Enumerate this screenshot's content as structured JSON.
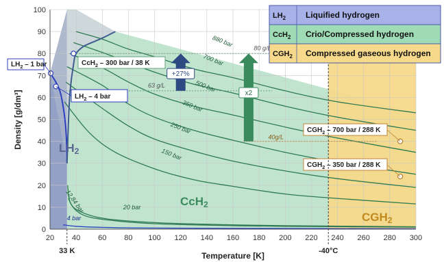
{
  "chart_data": {
    "type": "line",
    "xlabel": "Temperature [K]",
    "ylabel": "Density [g/dm³]",
    "xlim": [
      20,
      300
    ],
    "ylim": [
      0,
      100
    ],
    "x_ticks": [
      "20",
      "40",
      "60",
      "80",
      "100",
      "120",
      "140",
      "160",
      "180",
      "200",
      "220",
      "240",
      "260",
      "280",
      "300"
    ],
    "y_ticks": [
      "0",
      "10",
      "20",
      "30",
      "40",
      "50",
      "60",
      "70",
      "80",
      "90",
      "100"
    ],
    "x_marks": [
      "33 K",
      "-40°C"
    ],
    "grid": true,
    "regions": [
      {
        "name": "LH2",
        "label": "LH",
        "sub": "2",
        "color": "#8e9cc4"
      },
      {
        "name": "CcH2",
        "label": "CcH",
        "sub": "2",
        "color": "#b5dfc5"
      },
      {
        "name": "CGH2",
        "label": "CGH",
        "sub": "2",
        "color": "#f6d98a"
      }
    ],
    "legend": {
      "placement": "top-right",
      "items": [
        {
          "symbol": "LH",
          "sub": "2",
          "label": "Liquified hydrogen",
          "color": "#a8b2e8"
        },
        {
          "symbol": "CcH",
          "sub": "2",
          "label": "Crio/Compressed hydrogen",
          "color": "#9fdcb6"
        },
        {
          "symbol": "CGH",
          "sub": "2",
          "label": "Compressed gaseous hydrogen",
          "color": "#f6d98a"
        }
      ]
    },
    "series": [
      {
        "name": "880 bar",
        "x": [
          40,
          60,
          80,
          100,
          130,
          160,
          200,
          240,
          300
        ],
        "y": [
          90,
          86.5,
          82,
          78.5,
          73,
          69,
          63,
          58,
          53
        ]
      },
      {
        "name": "700 bar",
        "x": [
          38,
          60,
          80,
          100,
          130,
          160,
          200,
          240,
          300
        ],
        "y": [
          85,
          80.5,
          76,
          71.5,
          66,
          62,
          56,
          51,
          45
        ]
      },
      {
        "name": "500 bar",
        "x": [
          35,
          60,
          80,
          100,
          130,
          160,
          200,
          240,
          300
        ],
        "y": [
          80,
          73.5,
          67,
          61.5,
          56,
          52,
          46.5,
          41.5,
          35
        ]
      },
      {
        "name": "350 bar",
        "x": [
          33,
          60,
          80,
          100,
          130,
          160,
          200,
          240,
          300
        ],
        "y": [
          74,
          65.5,
          57,
          51,
          45,
          40.5,
          35,
          30.5,
          25
        ]
      },
      {
        "name": "250 bar",
        "x": [
          32,
          60,
          80,
          100,
          130,
          160,
          200,
          240,
          300
        ],
        "y": [
          67,
          55,
          47,
          41,
          35.5,
          31,
          26.5,
          23,
          19
        ]
      },
      {
        "name": "150 bar",
        "x": [
          31,
          50,
          70,
          100,
          130,
          160,
          200,
          240,
          300
        ],
        "y": [
          58,
          44,
          35,
          27.5,
          22.5,
          19.5,
          16,
          14,
          11.5
        ]
      },
      {
        "name": "12,84 bar",
        "x": [
          33.5,
          35,
          40,
          50,
          70,
          100,
          150,
          200,
          300
        ],
        "y": [
          20,
          13,
          8.5,
          5.5,
          3.8,
          2.5,
          1.7,
          1.3,
          0.9
        ]
      },
      {
        "name": "20 bar",
        "x": [
          34,
          40,
          60,
          100,
          150,
          200,
          300
        ],
        "y": [
          14,
          9,
          5,
          3,
          2.1,
          1.6,
          1.1
        ]
      },
      {
        "name": "4 bar",
        "x": [
          30,
          40,
          60,
          100,
          200,
          300
        ],
        "y": [
          2,
          1.3,
          0.8,
          0.5,
          0.3,
          0.2
        ]
      },
      {
        "name": "LH2 saturation boundary",
        "x": [
          20,
          24,
          28,
          31,
          32.5,
          33
        ],
        "y": [
          71,
          67.5,
          62,
          52,
          42,
          30
        ]
      },
      {
        "name": "Critical region boundary",
        "x": [
          33,
          35,
          38,
          40,
          45,
          50,
          60,
          70
        ],
        "y": [
          30,
          60,
          75,
          80,
          83,
          84.5,
          87,
          90
        ]
      }
    ],
    "reference_lines": [
      {
        "label": "80 g/L",
        "y": 80,
        "x_range": [
          38,
          190
        ]
      },
      {
        "label": "63 g/L",
        "y": 63,
        "x_range": [
          30,
          190
        ]
      },
      {
        "label": "40g/L",
        "y": 40,
        "x_range": [
          168,
          270
        ]
      }
    ],
    "annotations": [
      {
        "text": "LH₂ – 1 bar",
        "x": 20,
        "y": 71
      },
      {
        "text": "LH₂ – 4 bar",
        "x": 24,
        "y": 65
      },
      {
        "text": "CcH₂ – 300 bar / 38 K",
        "x": 38,
        "y": 80
      },
      {
        "text": "CGH₂ – 700 bar / 288 K",
        "x": 288,
        "y": 40
      },
      {
        "text": "CGH₂ – 350 bar / 288 K",
        "x": 288,
        "y": 24
      },
      {
        "text": "+27%",
        "from": 63,
        "to": 80,
        "x": 120
      },
      {
        "text": "x2",
        "from": 40,
        "to": 80,
        "x": 172
      }
    ]
  }
}
